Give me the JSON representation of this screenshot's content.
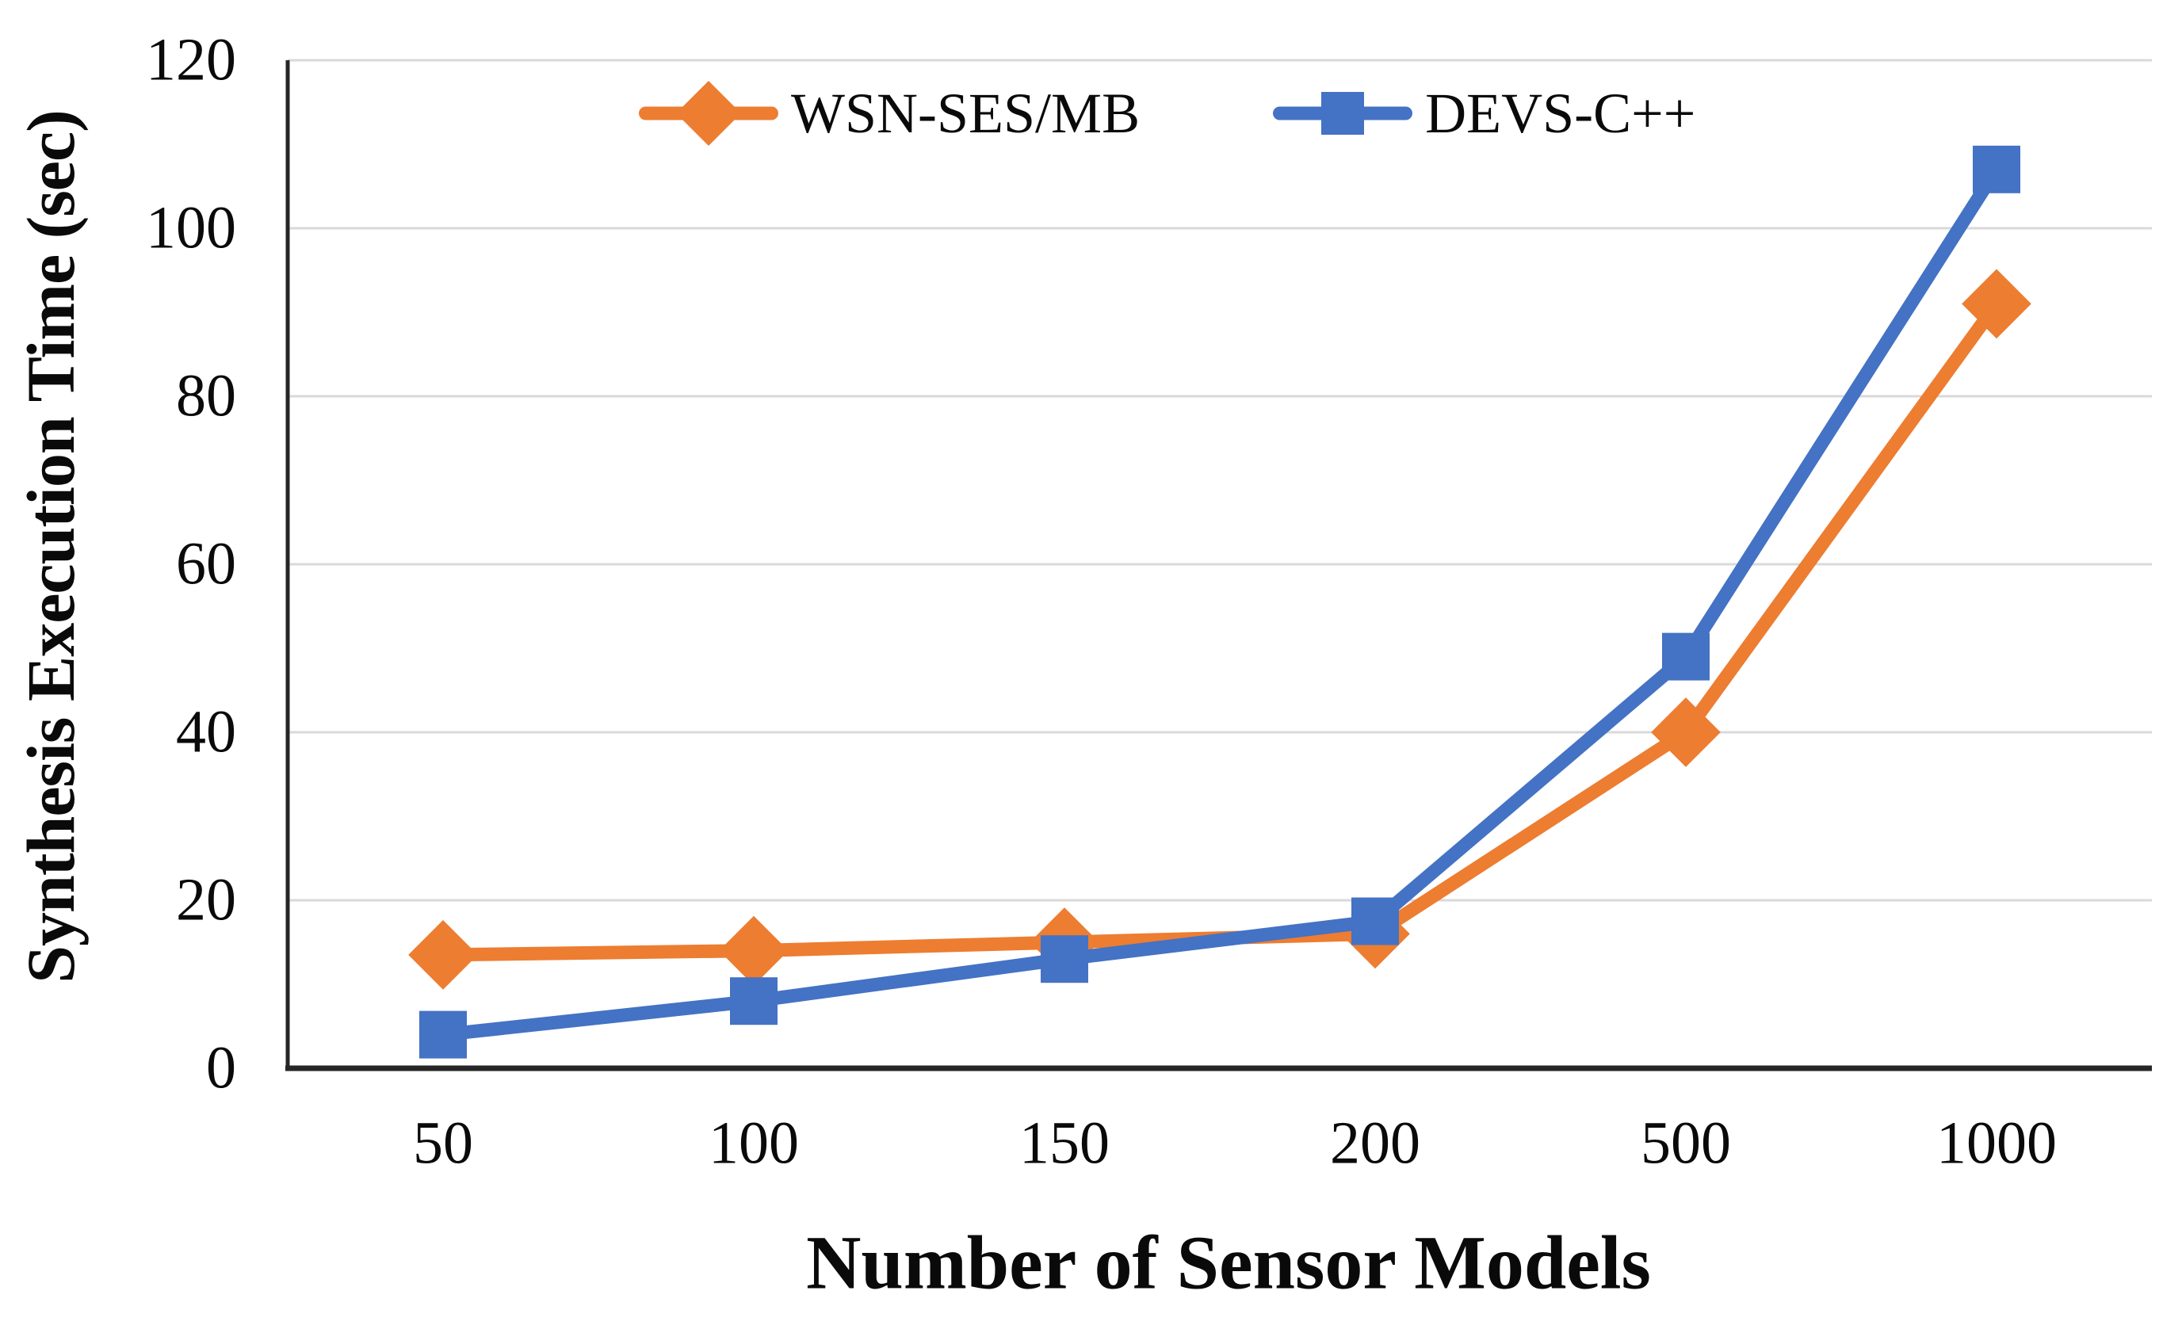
{
  "figure": {
    "background_color": "#ffffff"
  },
  "chart_data": {
    "type": "line",
    "title": "",
    "xlabel": "Number of Sensor Models",
    "ylabel": "Synthesis Execution Time (sec)",
    "categories": [
      "50",
      "100",
      "150",
      "200",
      "500",
      "1000"
    ],
    "x_axis_type": "categorical",
    "ylim": [
      0,
      120
    ],
    "y_ticks": [
      0,
      20,
      40,
      60,
      80,
      100,
      120
    ],
    "grid": "horizontal-only",
    "gridline_color": "#d9d9d9",
    "axis_line_color": "#262626",
    "text_color": "#0a0a0a",
    "legend_position": "top-center-inside",
    "series": [
      {
        "name": "WSN-SES/MB",
        "color": "#ED7D31",
        "marker": "diamond",
        "values": [
          13.5,
          14,
          15,
          16,
          40,
          91
        ]
      },
      {
        "name": "DEVS-C++",
        "color": "#4472C4",
        "marker": "square",
        "values": [
          4,
          8,
          13,
          17.5,
          49,
          107
        ]
      }
    ]
  }
}
